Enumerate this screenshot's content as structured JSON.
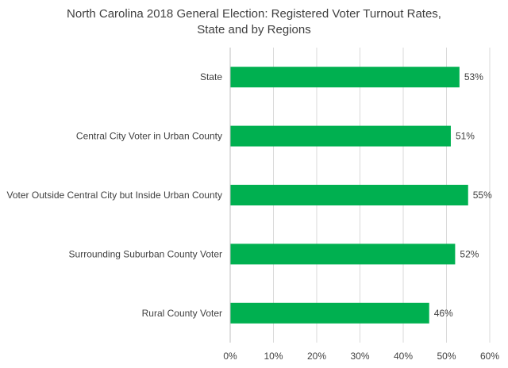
{
  "chart_data": {
    "type": "bar",
    "orientation": "horizontal",
    "title_lines": [
      "North Carolina 2018 General Election: Registered Voter Turnout Rates,",
      "State and by Regions"
    ],
    "categories": [
      "State",
      "Central City Voter in Urban County",
      "Voter Outside Central City but Inside Urban County",
      "Surrounding Suburban County Voter",
      "Rural County Voter"
    ],
    "values": [
      53,
      51,
      55,
      52,
      46
    ],
    "data_labels": [
      "53%",
      "51%",
      "55%",
      "52%",
      "46%"
    ],
    "xlim": [
      0,
      60
    ],
    "xticks": [
      0,
      10,
      20,
      30,
      40,
      50,
      60
    ],
    "xtick_labels": [
      "0%",
      "10%",
      "20%",
      "30%",
      "40%",
      "50%",
      "60%"
    ],
    "bar_color": "#00b050",
    "grid": true,
    "xlabel": "",
    "ylabel": ""
  }
}
